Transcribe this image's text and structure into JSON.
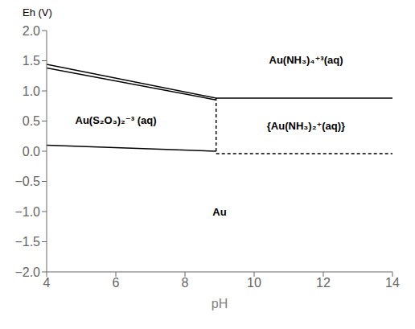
{
  "chart_data": {
    "type": "line",
    "xlabel": "pH",
    "ylabel": "Eh (V)",
    "xlim": [
      4,
      14
    ],
    "ylim": [
      -2.0,
      2.0
    ],
    "xticks": [
      4,
      6,
      8,
      10,
      12,
      14
    ],
    "yticks": [
      {
        "value": -2.0,
        "label": "−2.0"
      },
      {
        "value": -1.5,
        "label": "−1.5"
      },
      {
        "value": -1.0,
        "label": "−1.0"
      },
      {
        "value": -0.5,
        "label": "−0.5"
      },
      {
        "value": 0.0,
        "label": "0.0"
      },
      {
        "value": 0.5,
        "label": "0.5"
      },
      {
        "value": 1.0,
        "label": "1.0"
      },
      {
        "value": 1.5,
        "label": "1.5"
      },
      {
        "value": 2.0,
        "label": "2.0"
      }
    ],
    "grid": false,
    "series": [
      {
        "x": [
          4,
          8.9,
          14
        ],
        "values": [
          1.44,
          0.88,
          0.88
        ],
        "color": "#000000",
        "line_style": "solid"
      },
      {
        "x": [
          4,
          8.9
        ],
        "values": [
          1.38,
          0.85
        ],
        "color": "#000000",
        "line_style": "solid"
      },
      {
        "x": [
          4,
          8.9
        ],
        "values": [
          0.1,
          0.0
        ],
        "color": "#000000",
        "line_style": "solid"
      },
      {
        "x": [
          8.9,
          14
        ],
        "values": [
          -0.04,
          -0.04
        ],
        "color": "#000000",
        "line_style": "dashed"
      },
      {
        "x": [
          8.9,
          8.9
        ],
        "values": [
          0.0,
          0.88
        ],
        "color": "#000000",
        "line_style": "dashed"
      }
    ],
    "annotations": [
      {
        "text": "Au(S₂O₃)₂⁻³ (aq)",
        "x": 6.0,
        "y": 0.52
      },
      {
        "text": "Au(NH₃)₄⁺³(aq)",
        "x": 11.5,
        "y": 1.52
      },
      {
        "text": "{Au(NH₃)₂⁺(aq)}",
        "x": 11.5,
        "y": 0.42
      },
      {
        "text": "Au",
        "x": 9.0,
        "y": -1.0
      }
    ]
  }
}
